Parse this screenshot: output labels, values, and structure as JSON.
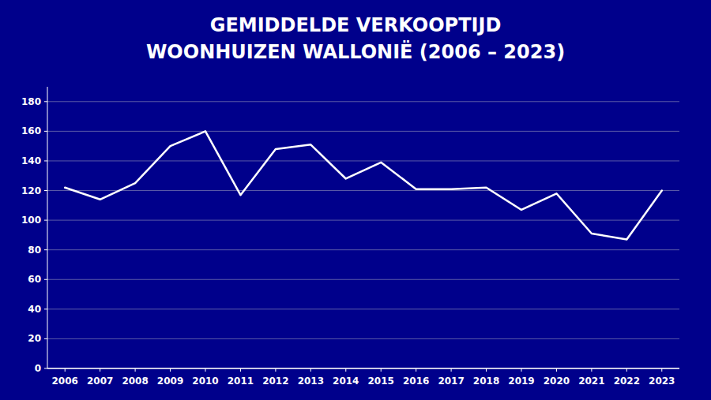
{
  "chart_data": {
    "type": "line",
    "title": "GEMIDDELDE VERKOOPTIJD",
    "subtitle": "WOONHUIZEN WALLONIË (2006 – 2023)",
    "x": [
      2006,
      2007,
      2008,
      2009,
      2010,
      2011,
      2012,
      2013,
      2014,
      2015,
      2016,
      2017,
      2018,
      2019,
      2020,
      2021,
      2022,
      2023
    ],
    "values": [
      122,
      114,
      125,
      150,
      160,
      117,
      148,
      151,
      128,
      139,
      121,
      121,
      122,
      107,
      118,
      91,
      87,
      120
    ],
    "color": "#ffffff",
    "xlim": [
      2005.5,
      2023.5
    ],
    "xticks": [
      2006,
      2007,
      2008,
      2009,
      2010,
      2011,
      2012,
      2013,
      2014,
      2015,
      2016,
      2017,
      2018,
      2019,
      2020,
      2021,
      2022,
      2023
    ],
    "ylim": [
      0,
      190
    ],
    "yticks": [
      0,
      20,
      40,
      60,
      80,
      100,
      120,
      140,
      160,
      180
    ],
    "grid": true
  }
}
